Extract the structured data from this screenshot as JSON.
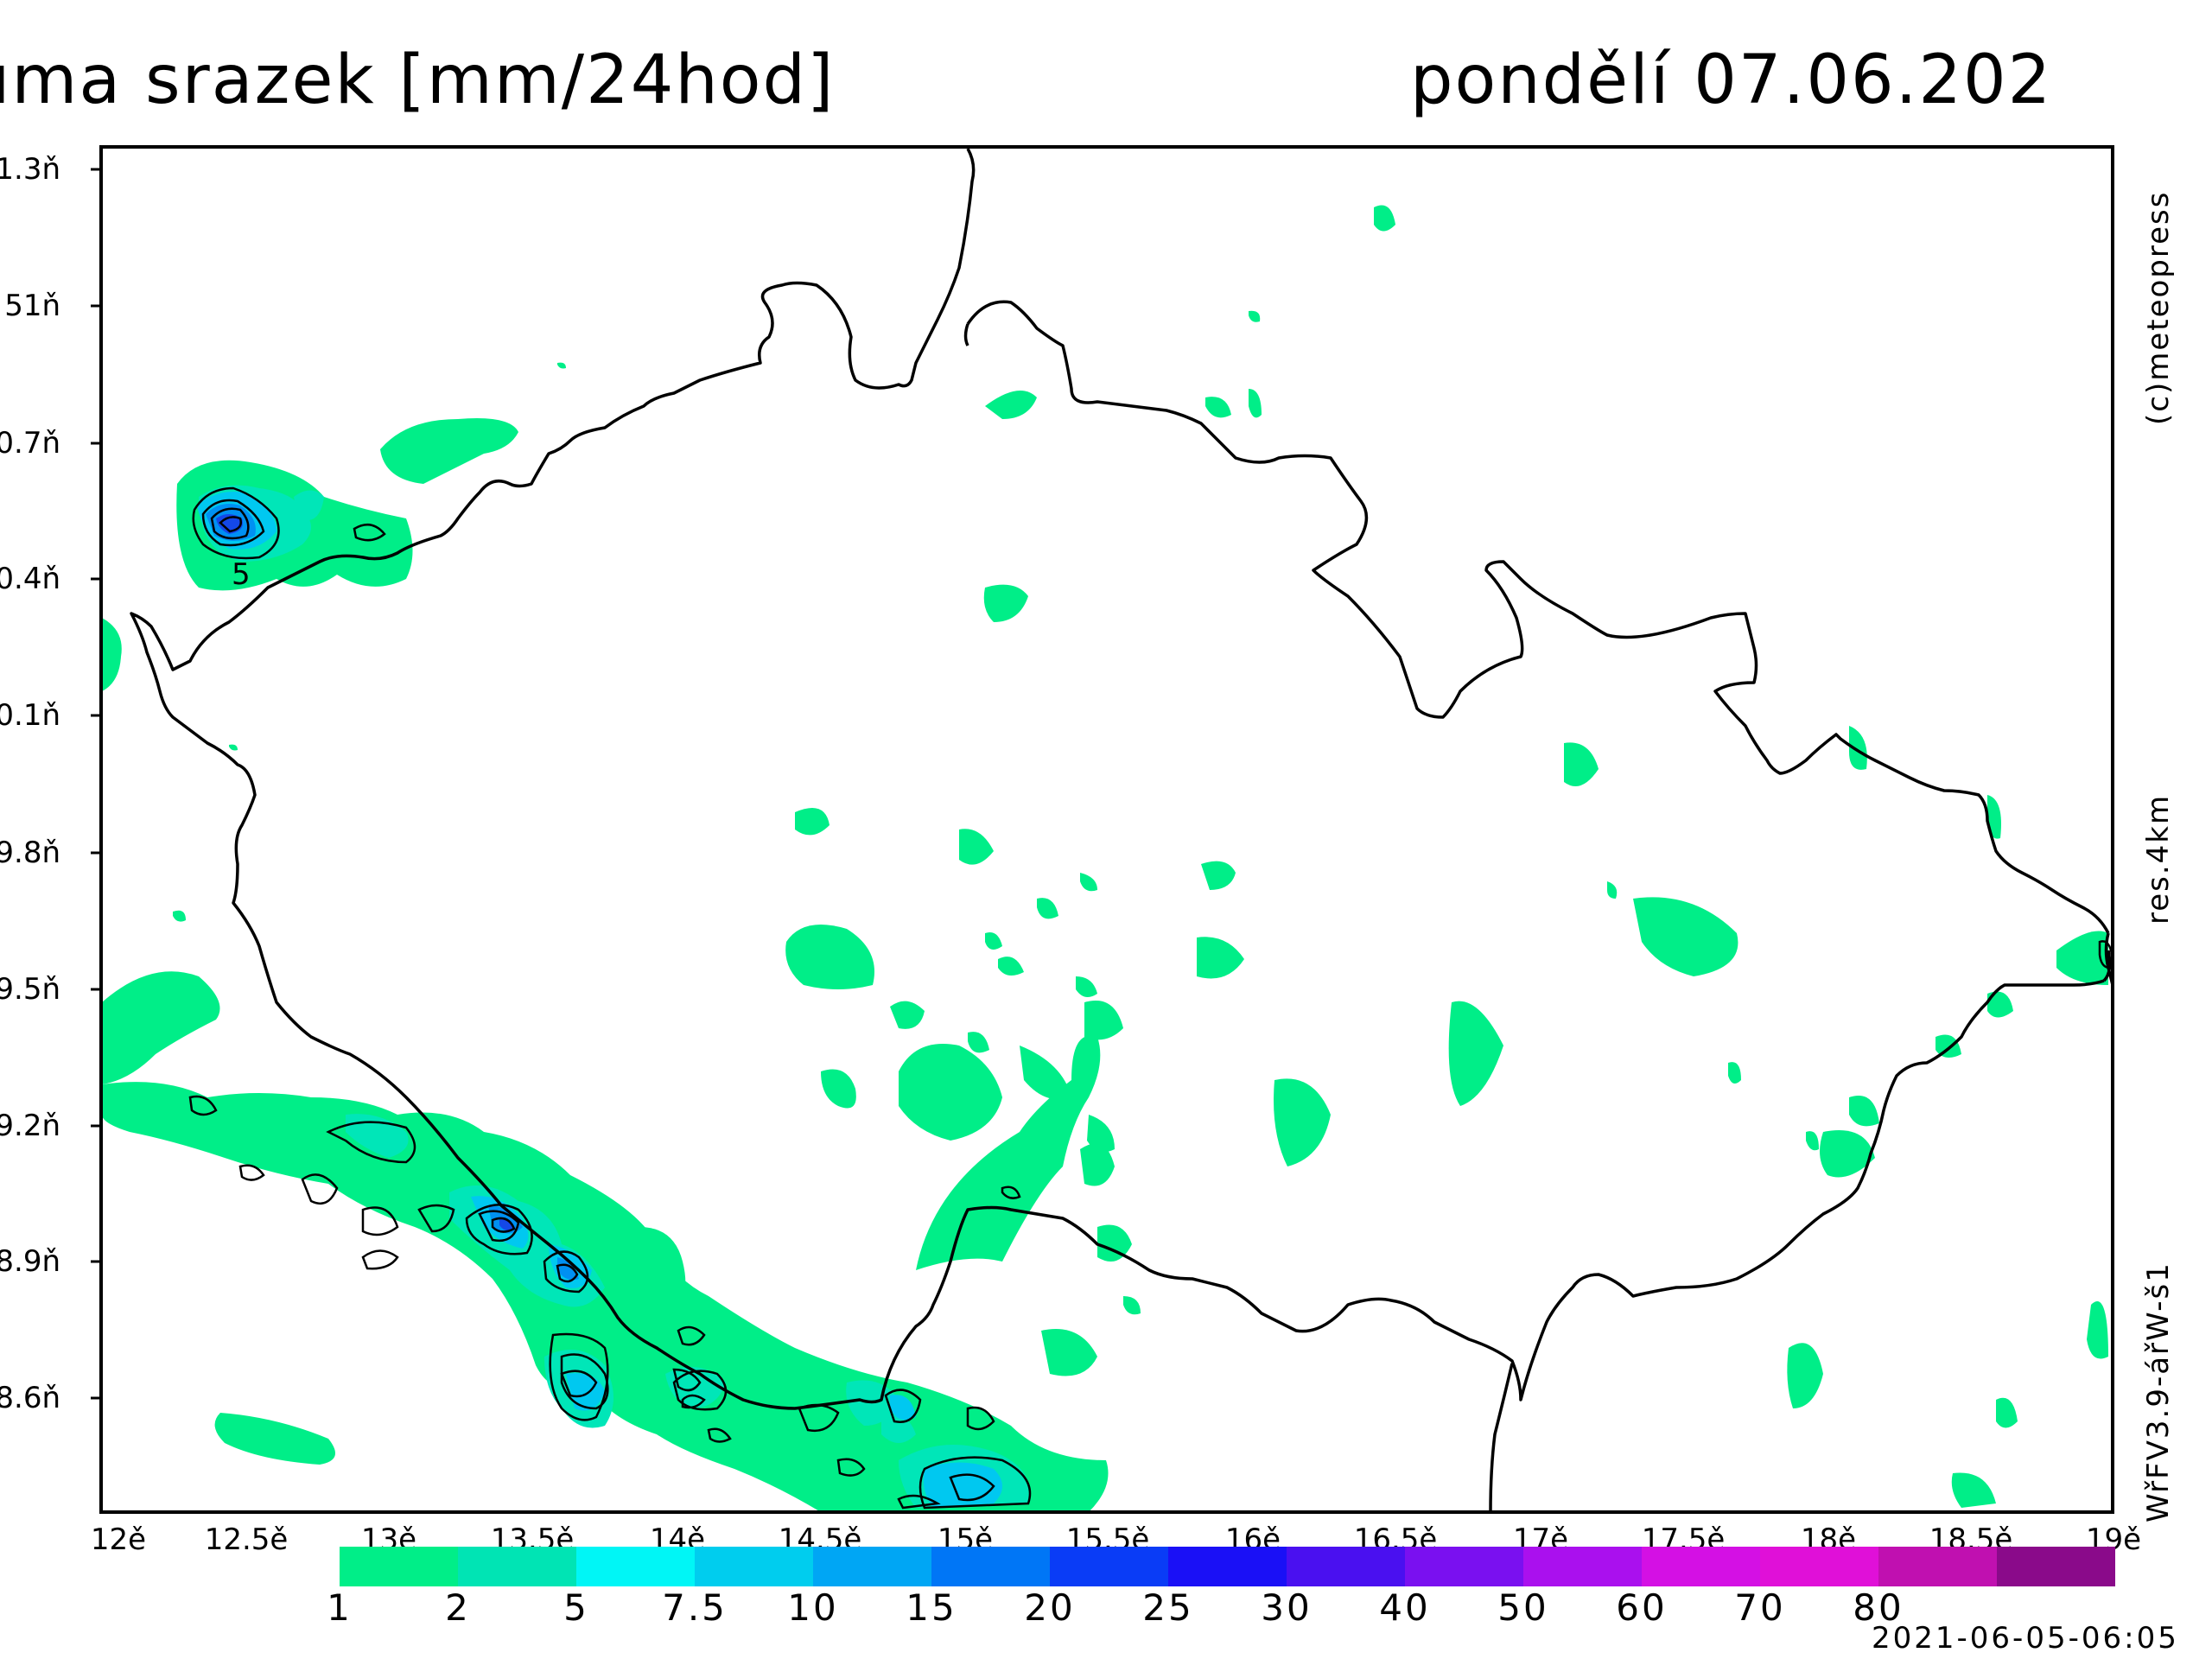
{
  "header": {
    "title": "uma srazek [mm/24hod]",
    "date": "pondělí 07.06.202"
  },
  "side_labels": {
    "copyright": "(c)meteopress",
    "resolution": "res.4km",
    "model": "WřFV3.9-ářW-š1"
  },
  "map": {
    "lat_labels": [
      "1.3ň",
      "51ň",
      "0.7ň",
      "0.4ň",
      "0.1ň",
      "9.8ň",
      "9.5ň",
      "9.2ň",
      "8.9ň",
      "8.6ň"
    ],
    "lon_labels": [
      "12ě",
      "12.5ě",
      "13ě",
      "13.5ě",
      "14ě",
      "14.5ě",
      "15ě",
      "15.5ě",
      "16ě",
      "16.5ě",
      "17ě",
      "17.5ě",
      "18ě",
      "18.5ě",
      "19ě"
    ],
    "contour_label": "5"
  },
  "legend": {
    "ticks": [
      "1",
      "2",
      "5",
      "7.5",
      "10",
      "15",
      "20",
      "25",
      "30",
      "40",
      "50",
      "60",
      "70",
      "80"
    ],
    "colors": [
      "#00ee88",
      "#00e4b4",
      "#00f6f6",
      "#00cdee",
      "#00a6f4",
      "#0076f6",
      "#0a3cf6",
      "#1a10f6",
      "#4a10f0",
      "#7a10f0",
      "#aa10ee",
      "#d410e4",
      "#e010d8",
      "#c010b0",
      "#8a0a8a"
    ]
  },
  "footer": {
    "timestamp": "2021-06-05-06:05"
  }
}
